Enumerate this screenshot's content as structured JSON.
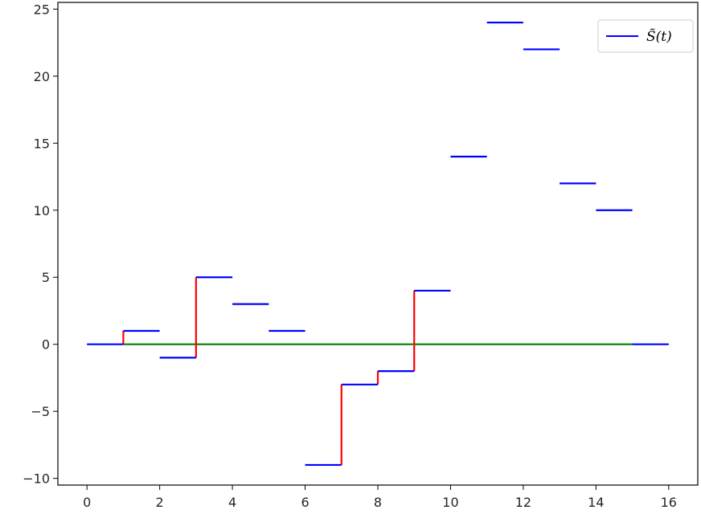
{
  "chart_data": {
    "type": "line",
    "title": "",
    "xlabel": "",
    "ylabel": "",
    "xlim": [
      -0.8,
      16.8
    ],
    "ylim": [
      -10.5,
      25.5
    ],
    "x_ticks": [
      0,
      2,
      4,
      6,
      8,
      10,
      12,
      14,
      16
    ],
    "y_ticks": [
      -10,
      -5,
      0,
      5,
      10,
      15,
      20,
      25
    ],
    "x_tick_labels": [
      "0",
      "2",
      "4",
      "6",
      "8",
      "10",
      "12",
      "14",
      "16"
    ],
    "y_tick_labels": [
      "−10",
      "−5",
      "0",
      "5",
      "10",
      "15",
      "20",
      "25"
    ],
    "grid": false,
    "legend": {
      "position": "top-right",
      "entries": [
        {
          "label": "S̃(t)",
          "color": "#0000ff"
        }
      ]
    },
    "series": [
      {
        "name": "S̃(t)",
        "color": "#0000ff",
        "style": "horizontal-steps",
        "segments": [
          {
            "x0": 0,
            "x1": 1,
            "y": 0
          },
          {
            "x0": 1,
            "x1": 2,
            "y": 1
          },
          {
            "x0": 2,
            "x1": 3,
            "y": -1
          },
          {
            "x0": 3,
            "x1": 4,
            "y": 5
          },
          {
            "x0": 4,
            "x1": 5,
            "y": 3
          },
          {
            "x0": 5,
            "x1": 6,
            "y": 1
          },
          {
            "x0": 6,
            "x1": 7,
            "y": -9
          },
          {
            "x0": 7,
            "x1": 8,
            "y": -3
          },
          {
            "x0": 8,
            "x1": 9,
            "y": -2
          },
          {
            "x0": 9,
            "x1": 10,
            "y": 4
          },
          {
            "x0": 10,
            "x1": 11,
            "y": 14
          },
          {
            "x0": 11,
            "x1": 12,
            "y": 24
          },
          {
            "x0": 12,
            "x1": 13,
            "y": 22
          },
          {
            "x0": 13,
            "x1": 14,
            "y": 12
          },
          {
            "x0": 14,
            "x1": 15,
            "y": 10
          },
          {
            "x0": 15,
            "x1": 16,
            "y": 0
          }
        ]
      },
      {
        "color": "#ff0000",
        "style": "vertical-jumps",
        "segments": [
          {
            "x": 1,
            "y0": 0,
            "y1": 1
          },
          {
            "x": 3,
            "y0": -1,
            "y1": 5
          },
          {
            "x": 7,
            "y0": -9,
            "y1": -3
          },
          {
            "x": 8,
            "y0": -3,
            "y1": -2
          },
          {
            "x": 9,
            "y0": -2,
            "y1": 4
          }
        ]
      },
      {
        "color": "#008000",
        "style": "horizontal-line",
        "segments": [
          {
            "x0": 1,
            "x1": 15,
            "y": 0
          }
        ]
      }
    ]
  }
}
